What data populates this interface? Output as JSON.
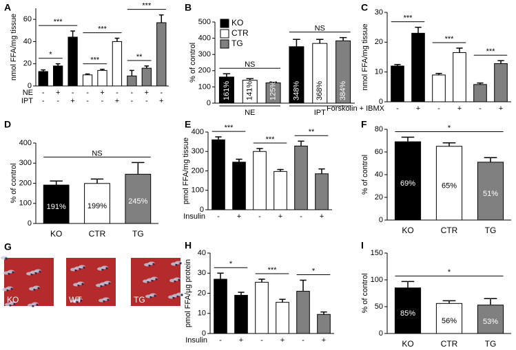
{
  "chart_data": [
    {
      "type": "bar",
      "label": "A",
      "ylabel": "nmol FFA/mg tissue",
      "ylim": [
        0,
        70
      ],
      "yticks": [
        0,
        20,
        40,
        60
      ],
      "values": [
        13,
        18,
        44,
        10,
        14,
        40,
        9,
        16,
        57
      ],
      "errors": [
        1.5,
        2,
        5.5,
        0.8,
        1,
        3,
        5,
        2,
        7
      ],
      "colors": [
        "#000000",
        "#000000",
        "#000000",
        "#ffffff",
        "#ffffff",
        "#ffffff",
        "#808080",
        "#808080",
        "#808080"
      ],
      "conditions": [
        {
          "name": "NE",
          "values": [
            "-",
            "+",
            "-",
            "-",
            "+",
            "-",
            "-",
            "+",
            "-"
          ]
        },
        {
          "name": "IPT",
          "values": [
            "-",
            "-",
            "+",
            "-",
            "-",
            "+",
            "-",
            "-",
            "+"
          ]
        }
      ],
      "brackets": [
        {
          "from": 0,
          "to": 1,
          "label": "*"
        },
        {
          "from": 0,
          "to": 2,
          "label": "***"
        },
        {
          "from": 3,
          "to": 4,
          "label": "***"
        },
        {
          "from": 3,
          "to": 5,
          "label": "***"
        },
        {
          "from": 6,
          "to": 7,
          "label": "**"
        },
        {
          "from": 6,
          "to": 8,
          "label": "***"
        }
      ]
    },
    {
      "type": "bar",
      "label": "B",
      "ylabel": "% of control",
      "ylim": [
        0,
        500
      ],
      "yticks": [
        0,
        100,
        200,
        300,
        400,
        500
      ],
      "values": [
        161,
        141,
        125,
        348,
        368,
        384
      ],
      "value_labels": [
        "161%",
        "141%",
        "125%",
        "348%",
        "368%",
        "384%"
      ],
      "rotate_labels": true,
      "errors": [
        20,
        10,
        5,
        45,
        25,
        20
      ],
      "colors": [
        "#000000",
        "#ffffff",
        "#808080",
        "#000000",
        "#ffffff",
        "#808080"
      ],
      "legend": [
        {
          "name": "KO",
          "color": "#000000"
        },
        {
          "name": "CTR",
          "color": "#ffffff"
        },
        {
          "name": "TG",
          "color": "#808080"
        }
      ],
      "groups": [
        {
          "name": "NE",
          "from": 0,
          "to": 2
        },
        {
          "name": "IPT",
          "from": 3,
          "to": 5
        }
      ],
      "brackets": [
        {
          "from": 0,
          "to": 2,
          "label": "NS"
        },
        {
          "from": 3,
          "to": 5,
          "label": "NS"
        }
      ]
    },
    {
      "type": "bar",
      "label": "C",
      "ylabel": "nmol FFA/mg tissue",
      "ylim": [
        0,
        30
      ],
      "yticks": [
        0,
        10,
        20,
        30
      ],
      "values": [
        12,
        23,
        9,
        16.5,
        5.8,
        12.8
      ],
      "errors": [
        0.5,
        2,
        0.5,
        1.5,
        0.5,
        1
      ],
      "colors": [
        "#000000",
        "#000000",
        "#ffffff",
        "#ffffff",
        "#808080",
        "#808080"
      ],
      "conditions": [
        {
          "name": "Forskolin + IBMX",
          "values": [
            "-",
            "+",
            "-",
            "+",
            "-",
            "+"
          ]
        }
      ],
      "brackets": [
        {
          "from": 0,
          "to": 1,
          "label": "***"
        },
        {
          "from": 2,
          "to": 3,
          "label": "***"
        },
        {
          "from": 4,
          "to": 5,
          "label": "***"
        }
      ]
    },
    {
      "type": "bar",
      "label": "D",
      "ylabel": "% of control",
      "ylim": [
        0,
        400
      ],
      "yticks": [
        0,
        100,
        200,
        300,
        400
      ],
      "categories": [
        "KO",
        "CTR",
        "TG"
      ],
      "values": [
        191,
        199,
        245
      ],
      "value_labels": [
        "191%",
        "199%",
        "245%"
      ],
      "errors": [
        20,
        22,
        58
      ],
      "colors": [
        "#000000",
        "#ffffff",
        "#808080"
      ],
      "brackets": [
        {
          "from": 0,
          "to": 2,
          "label": "NS"
        }
      ]
    },
    {
      "type": "bar",
      "label": "E",
      "ylabel": "pmol FFA/mg tissue",
      "ylim": [
        0,
        400
      ],
      "yticks": [
        0,
        100,
        200,
        300,
        400
      ],
      "values": [
        360,
        245,
        300,
        197,
        328,
        185
      ],
      "errors": [
        15,
        15,
        15,
        10,
        25,
        25
      ],
      "colors": [
        "#000000",
        "#000000",
        "#ffffff",
        "#ffffff",
        "#808080",
        "#808080"
      ],
      "conditions": [
        {
          "name": "Insulin",
          "values": [
            "-",
            "+",
            "-",
            "+",
            "-",
            "+"
          ]
        }
      ],
      "brackets": [
        {
          "from": 0,
          "to": 1,
          "label": "***"
        },
        {
          "from": 2,
          "to": 3,
          "label": "***"
        },
        {
          "from": 4,
          "to": 5,
          "label": "**"
        }
      ]
    },
    {
      "type": "bar",
      "label": "F",
      "ylabel": "% of control",
      "ylim": [
        0,
        80
      ],
      "yticks": [
        0,
        20,
        40,
        60,
        80
      ],
      "categories": [
        "KO",
        "CTR",
        "TG"
      ],
      "values": [
        69,
        65,
        51
      ],
      "value_labels": [
        "69%",
        "65%",
        "51%"
      ],
      "errors": [
        4,
        3,
        4
      ],
      "colors": [
        "#000000",
        "#ffffff",
        "#808080"
      ],
      "brackets": [
        {
          "from": 0,
          "to": 2,
          "label": "*"
        }
      ]
    },
    {
      "type": "bar",
      "label": "H",
      "ylabel": "pmol FFA/µg protein",
      "ylim": [
        0,
        40
      ],
      "yticks": [
        0,
        10,
        20,
        30,
        40
      ],
      "values": [
        27,
        19,
        25.5,
        15.5,
        21,
        9.5
      ],
      "errors": [
        3,
        1.5,
        1.5,
        1.5,
        5.5,
        1.2
      ],
      "colors": [
        "#000000",
        "#000000",
        "#ffffff",
        "#ffffff",
        "#808080",
        "#808080"
      ],
      "conditions": [
        {
          "name": "Insulin",
          "values": [
            "-",
            "+",
            "-",
            "+",
            "-",
            "+"
          ]
        }
      ],
      "brackets": [
        {
          "from": 0,
          "to": 1,
          "label": "*"
        },
        {
          "from": 2,
          "to": 3,
          "label": "***"
        },
        {
          "from": 4,
          "to": 5,
          "label": "*"
        }
      ]
    },
    {
      "type": "bar",
      "label": "I",
      "ylabel": "% of control",
      "ylim": [
        0,
        150
      ],
      "yticks": [
        0,
        50,
        100,
        150
      ],
      "categories": [
        "KO",
        "CTR",
        "TG"
      ],
      "values": [
        85,
        56,
        53
      ],
      "value_labels": [
        "85%",
        "56%",
        "53%"
      ],
      "errors": [
        12,
        5,
        12
      ],
      "colors": [
        "#000000",
        "#ffffff",
        "#808080"
      ],
      "brackets": [
        {
          "from": 0,
          "to": 2,
          "label": "*"
        }
      ]
    }
  ],
  "panel_g": {
    "label": "G",
    "images": [
      "KO",
      "WT",
      "TG"
    ]
  }
}
